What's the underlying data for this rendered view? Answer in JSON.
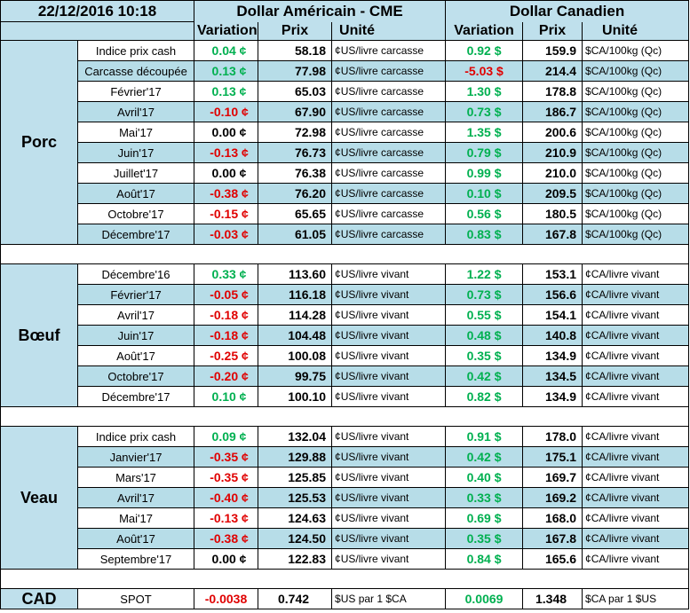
{
  "header": {
    "datetime": "22/12/2016 10:18",
    "us_title": "Dollar Américain - CME",
    "ca_title": "Dollar Canadien",
    "col_variation": "Variation",
    "col_prix": "Prix",
    "col_unite": "Unité"
  },
  "colors": {
    "positive": "#00b050",
    "negative": "#e00000",
    "header_bg": "#bfe0ec",
    "row_alt_bg": "#b7dde8"
  },
  "groups": {
    "porc": {
      "name": "Porc",
      "rows": [
        {
          "label": "Indice prix cash",
          "us_var": "0.04 ¢",
          "us_var_dir": "pos",
          "us_price": "58.18",
          "us_unit": "¢US/livre carcasse",
          "ca_var": "0.92 $",
          "ca_var_dir": "pos",
          "ca_price": "159.9",
          "ca_unit": "$CA/100kg (Qc)"
        },
        {
          "label": "Carcasse découpée",
          "us_var": "0.13 ¢",
          "us_var_dir": "pos",
          "us_price": "77.98",
          "us_unit": "¢US/livre carcasse",
          "ca_var": "-5.03 $",
          "ca_var_dir": "neg",
          "ca_price": "214.4",
          "ca_unit": "$CA/100kg (Qc)"
        },
        {
          "label": "Février'17",
          "us_var": "0.13 ¢",
          "us_var_dir": "pos",
          "us_price": "65.03",
          "us_unit": "¢US/livre carcasse",
          "ca_var": "1.30 $",
          "ca_var_dir": "pos",
          "ca_price": "178.8",
          "ca_unit": "$CA/100kg (Qc)"
        },
        {
          "label": "Avril'17",
          "us_var": "-0.10 ¢",
          "us_var_dir": "neg",
          "us_price": "67.90",
          "us_unit": "¢US/livre carcasse",
          "ca_var": "0.73 $",
          "ca_var_dir": "pos",
          "ca_price": "186.7",
          "ca_unit": "$CA/100kg (Qc)"
        },
        {
          "label": "Mai'17",
          "us_var": "0.00 ¢",
          "us_var_dir": "neu",
          "us_price": "72.98",
          "us_unit": "¢US/livre carcasse",
          "ca_var": "1.35 $",
          "ca_var_dir": "pos",
          "ca_price": "200.6",
          "ca_unit": "$CA/100kg (Qc)"
        },
        {
          "label": "Juin'17",
          "us_var": "-0.13 ¢",
          "us_var_dir": "neg",
          "us_price": "76.73",
          "us_unit": "¢US/livre carcasse",
          "ca_var": "0.79 $",
          "ca_var_dir": "pos",
          "ca_price": "210.9",
          "ca_unit": "$CA/100kg (Qc)"
        },
        {
          "label": "Juillet'17",
          "us_var": "0.00 ¢",
          "us_var_dir": "neu",
          "us_price": "76.38",
          "us_unit": "¢US/livre carcasse",
          "ca_var": "0.99 $",
          "ca_var_dir": "pos",
          "ca_price": "210.0",
          "ca_unit": "$CA/100kg (Qc)"
        },
        {
          "label": "Août'17",
          "us_var": "-0.38 ¢",
          "us_var_dir": "neg",
          "us_price": "76.20",
          "us_unit": "¢US/livre carcasse",
          "ca_var": "0.10 $",
          "ca_var_dir": "pos",
          "ca_price": "209.5",
          "ca_unit": "$CA/100kg (Qc)"
        },
        {
          "label": "Octobre'17",
          "us_var": "-0.15 ¢",
          "us_var_dir": "neg",
          "us_price": "65.65",
          "us_unit": "¢US/livre carcasse",
          "ca_var": "0.56 $",
          "ca_var_dir": "pos",
          "ca_price": "180.5",
          "ca_unit": "$CA/100kg (Qc)"
        },
        {
          "label": "Décembre'17",
          "us_var": "-0.03 ¢",
          "us_var_dir": "neg",
          "us_price": "61.05",
          "us_unit": "¢US/livre carcasse",
          "ca_var": "0.83 $",
          "ca_var_dir": "pos",
          "ca_price": "167.8",
          "ca_unit": "$CA/100kg (Qc)"
        }
      ]
    },
    "boeuf": {
      "name": "Bœuf",
      "rows": [
        {
          "label": "Décembre'16",
          "us_var": "0.33 ¢",
          "us_var_dir": "pos",
          "us_price": "113.60",
          "us_unit": "¢US/livre vivant",
          "ca_var": "1.22 $",
          "ca_var_dir": "pos",
          "ca_price": "153.1",
          "ca_unit": "¢CA/livre vivant"
        },
        {
          "label": "Février'17",
          "us_var": "-0.05 ¢",
          "us_var_dir": "neg",
          "us_price": "116.18",
          "us_unit": "¢US/livre vivant",
          "ca_var": "0.73 $",
          "ca_var_dir": "pos",
          "ca_price": "156.6",
          "ca_unit": "¢CA/livre vivant"
        },
        {
          "label": "Avril'17",
          "us_var": "-0.18 ¢",
          "us_var_dir": "neg",
          "us_price": "114.28",
          "us_unit": "¢US/livre vivant",
          "ca_var": "0.55 $",
          "ca_var_dir": "pos",
          "ca_price": "154.1",
          "ca_unit": "¢CA/livre vivant"
        },
        {
          "label": "Juin'17",
          "us_var": "-0.18 ¢",
          "us_var_dir": "neg",
          "us_price": "104.48",
          "us_unit": "¢US/livre vivant",
          "ca_var": "0.48 $",
          "ca_var_dir": "pos",
          "ca_price": "140.8",
          "ca_unit": "¢CA/livre vivant"
        },
        {
          "label": "Août'17",
          "us_var": "-0.25 ¢",
          "us_var_dir": "neg",
          "us_price": "100.08",
          "us_unit": "¢US/livre vivant",
          "ca_var": "0.35 $",
          "ca_var_dir": "pos",
          "ca_price": "134.9",
          "ca_unit": "¢CA/livre vivant"
        },
        {
          "label": "Octobre'17",
          "us_var": "-0.20 ¢",
          "us_var_dir": "neg",
          "us_price": "99.75",
          "us_unit": "¢US/livre vivant",
          "ca_var": "0.42 $",
          "ca_var_dir": "pos",
          "ca_price": "134.5",
          "ca_unit": "¢CA/livre vivant"
        },
        {
          "label": "Décembre'17",
          "us_var": "0.10 ¢",
          "us_var_dir": "pos",
          "us_price": "100.10",
          "us_unit": "¢US/livre vivant",
          "ca_var": "0.82 $",
          "ca_var_dir": "pos",
          "ca_price": "134.9",
          "ca_unit": "¢CA/livre vivant"
        }
      ]
    },
    "veau": {
      "name": "Veau",
      "rows": [
        {
          "label": "Indice prix cash",
          "us_var": "0.09 ¢",
          "us_var_dir": "pos",
          "us_price": "132.04",
          "us_unit": "¢US/livre vivant",
          "ca_var": "0.91 $",
          "ca_var_dir": "pos",
          "ca_price": "178.0",
          "ca_unit": "¢CA/livre vivant"
        },
        {
          "label": "Janvier'17",
          "us_var": "-0.35 ¢",
          "us_var_dir": "neg",
          "us_price": "129.88",
          "us_unit": "¢US/livre vivant",
          "ca_var": "0.42 $",
          "ca_var_dir": "pos",
          "ca_price": "175.1",
          "ca_unit": "¢CA/livre vivant"
        },
        {
          "label": "Mars'17",
          "us_var": "-0.35 ¢",
          "us_var_dir": "neg",
          "us_price": "125.85",
          "us_unit": "¢US/livre vivant",
          "ca_var": "0.40 $",
          "ca_var_dir": "pos",
          "ca_price": "169.7",
          "ca_unit": "¢CA/livre vivant"
        },
        {
          "label": "Avril'17",
          "us_var": "-0.40 ¢",
          "us_var_dir": "neg",
          "us_price": "125.53",
          "us_unit": "¢US/livre vivant",
          "ca_var": "0.33 $",
          "ca_var_dir": "pos",
          "ca_price": "169.2",
          "ca_unit": "¢CA/livre vivant"
        },
        {
          "label": "Mai'17",
          "us_var": "-0.13 ¢",
          "us_var_dir": "neg",
          "us_price": "124.63",
          "us_unit": "¢US/livre vivant",
          "ca_var": "0.69 $",
          "ca_var_dir": "pos",
          "ca_price": "168.0",
          "ca_unit": "¢CA/livre vivant"
        },
        {
          "label": "Août'17",
          "us_var": "-0.38 ¢",
          "us_var_dir": "neg",
          "us_price": "124.50",
          "us_unit": "¢US/livre vivant",
          "ca_var": "0.35 $",
          "ca_var_dir": "pos",
          "ca_price": "167.8",
          "ca_unit": "¢CA/livre vivant"
        },
        {
          "label": "Septembre'17",
          "us_var": "0.00 ¢",
          "us_var_dir": "neu",
          "us_price": "122.83",
          "us_unit": "¢US/livre vivant",
          "ca_var": "0.84 $",
          "ca_var_dir": "pos",
          "ca_price": "165.6",
          "ca_unit": "¢CA/livre vivant"
        }
      ]
    }
  },
  "cad": {
    "name": "CAD",
    "label": "SPOT",
    "us_var": "-0.0038",
    "us_var_dir": "neg",
    "us_price": "0.742",
    "us_unit": "$US par 1 $CA",
    "ca_var": "0.0069",
    "ca_var_dir": "pos",
    "ca_price": "1.348",
    "ca_unit": "$CA par 1 $US"
  }
}
